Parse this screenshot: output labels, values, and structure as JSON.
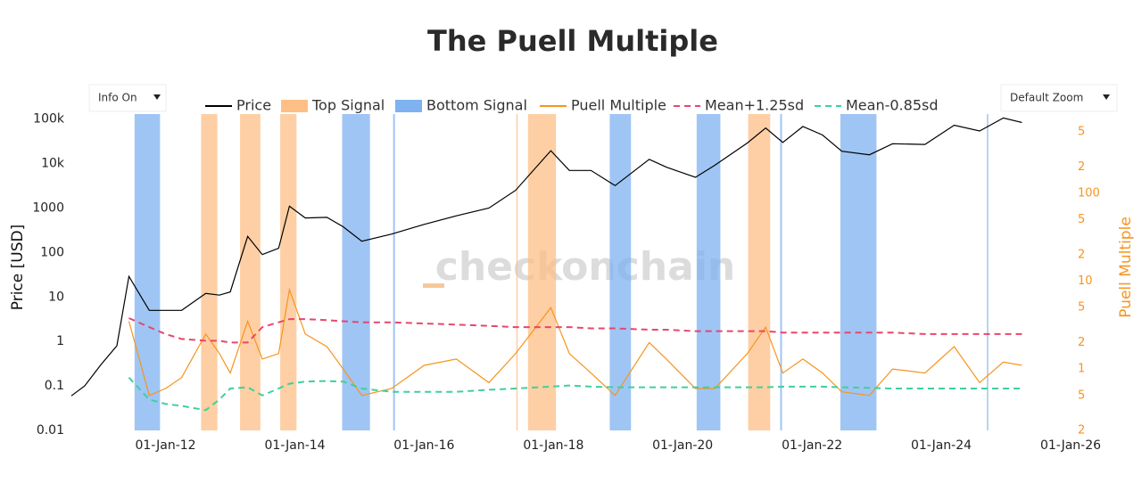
{
  "controls": {
    "info": "Info On",
    "zoom": "Default Zoom"
  },
  "chart_data": {
    "type": "line",
    "title": "The Puell Multiple",
    "watermark": "checkonchain",
    "ylabel": "Price [USD]",
    "y2label": "Puell Multiple",
    "log_scale": true,
    "y2_log_scale": true,
    "xlim": [
      "2010-07-18",
      "2026-01-01"
    ],
    "xticks": [
      {
        "value": "2012-01-01",
        "label": "01-Jan-12"
      },
      {
        "value": "2014-01-01",
        "label": "01-Jan-14"
      },
      {
        "value": "2016-01-01",
        "label": "01-Jan-16"
      },
      {
        "value": "2018-01-01",
        "label": "01-Jan-18"
      },
      {
        "value": "2020-01-01",
        "label": "01-Jan-20"
      },
      {
        "value": "2022-01-01",
        "label": "01-Jan-22"
      },
      {
        "value": "2024-01-01",
        "label": "01-Jan-24"
      },
      {
        "value": "2026-01-01",
        "label": "01-Jan-26"
      }
    ],
    "ylim": [
      0.01,
      130000
    ],
    "yticks": [
      0.01,
      0.1,
      1,
      10,
      100,
      1000,
      {
        "value": 10000,
        "label": "10k"
      },
      {
        "value": 100000,
        "label": "100k"
      }
    ],
    "y2lim": [
      0.2,
      800
    ],
    "y2ticks": [
      {
        "value": 0.2,
        "label": "2"
      },
      {
        "value": 0.5,
        "label": "5"
      },
      1,
      {
        "value": 2,
        "label": "2"
      },
      {
        "value": 5,
        "label": "5"
      },
      10,
      {
        "value": 20,
        "label": "2"
      },
      {
        "value": 50,
        "label": "5"
      },
      100,
      {
        "value": 200,
        "label": "2"
      },
      {
        "value": 500,
        "label": "5"
      }
    ],
    "x": [
      "2010-07-18",
      "2010-10-01",
      "2011-01-01",
      "2011-04-01",
      "2011-06-08",
      "2011-10-01",
      "2012-01-01",
      "2012-04-01",
      "2012-08-15",
      "2012-11-01",
      "2013-01-01",
      "2013-04-09",
      "2013-07-01",
      "2013-10-01",
      "2013-12-01",
      "2014-03-01",
      "2014-07-01",
      "2014-10-01",
      "2015-01-14",
      "2015-07-01",
      "2016-01-01",
      "2016-07-01",
      "2017-01-01",
      "2017-06-01",
      "2017-12-17",
      "2018-04-01",
      "2018-08-01",
      "2018-12-15",
      "2019-06-26",
      "2019-10-01",
      "2020-03-13",
      "2020-07-01",
      "2020-12-31",
      "2021-04-14",
      "2021-07-20",
      "2021-11-10",
      "2022-03-01",
      "2022-06-18",
      "2022-11-21",
      "2023-04-01",
      "2023-10-01",
      "2024-03-14",
      "2024-08-05",
      "2024-12-17",
      "2025-04-01"
    ],
    "series": [
      {
        "name": "Price",
        "color": "#000000",
        "values": [
          0.06,
          0.1,
          0.3,
          0.8,
          29,
          5,
          5,
          5,
          12,
          11,
          13,
          230,
          90,
          125,
          1100,
          600,
          620,
          380,
          180,
          260,
          430,
          670,
          1000,
          2500,
          19500,
          7000,
          7000,
          3200,
          12500,
          8300,
          4900,
          9200,
          29000,
          63000,
          30000,
          68000,
          44000,
          19000,
          15800,
          28000,
          27000,
          73000,
          54000,
          106000,
          84000
        ]
      },
      {
        "name": "Top Signal",
        "kind": "band",
        "color": "#fdbf85",
        "ranges": [
          [
            "2012-07-20",
            "2012-10-20"
          ],
          [
            "2013-02-25",
            "2013-06-20"
          ],
          [
            "2013-10-10",
            "2014-01-10"
          ],
          [
            "2017-06-05",
            "2017-06-12"
          ],
          [
            "2017-08-10",
            "2018-01-15"
          ],
          [
            "2021-01-05",
            "2021-05-10"
          ]
        ]
      },
      {
        "name": "Bottom Signal",
        "kind": "band",
        "color": "#7fb2f0",
        "ranges": [
          [
            "2011-07-10",
            "2011-12-01"
          ],
          [
            "2014-09-25",
            "2015-03-01"
          ],
          [
            "2015-07-10",
            "2015-07-20"
          ],
          [
            "2018-11-15",
            "2019-03-15"
          ],
          [
            "2020-03-20",
            "2020-08-01"
          ],
          [
            "2021-07-05",
            "2021-07-15"
          ],
          [
            "2022-06-10",
            "2022-12-31"
          ],
          [
            "2024-09-15",
            "2024-09-22"
          ]
        ]
      },
      {
        "name": "Puell Multiple",
        "color": "#f7941d",
        "axis": "y2",
        "values": [
          null,
          null,
          null,
          null,
          3.5,
          0.5,
          0.6,
          0.8,
          2.5,
          1.5,
          0.9,
          3.5,
          1.3,
          1.5,
          8,
          2.5,
          1.8,
          1.0,
          0.5,
          0.6,
          1.1,
          1.3,
          0.7,
          1.5,
          5,
          1.5,
          0.9,
          0.5,
          2.0,
          1.3,
          0.6,
          0.6,
          1.5,
          3.0,
          0.9,
          1.3,
          0.9,
          0.55,
          0.5,
          1.0,
          0.9,
          1.8,
          0.7,
          1.2,
          1.1
        ]
      },
      {
        "name": "Mean+1.25sd",
        "color": "#e8466e",
        "axis": "y2",
        "dash": true,
        "values": [
          null,
          null,
          null,
          null,
          3.8,
          3.0,
          2.5,
          2.2,
          2.1,
          2.1,
          2.0,
          2.0,
          3.0,
          3.4,
          3.7,
          3.7,
          3.6,
          3.5,
          3.4,
          3.4,
          3.3,
          3.2,
          3.1,
          3.0,
          3.0,
          3.0,
          2.9,
          2.9,
          2.8,
          2.8,
          2.7,
          2.7,
          2.7,
          2.7,
          2.6,
          2.6,
          2.6,
          2.6,
          2.6,
          2.6,
          2.5,
          2.5,
          2.5,
          2.5,
          2.5
        ]
      },
      {
        "name": "Mean-0.85sd",
        "color": "#3fd09b",
        "axis": "y2",
        "dash": true,
        "values": [
          null,
          null,
          null,
          null,
          0.8,
          0.45,
          0.4,
          0.38,
          0.34,
          0.45,
          0.6,
          0.62,
          0.5,
          0.6,
          0.68,
          0.72,
          0.73,
          0.72,
          0.6,
          0.55,
          0.55,
          0.55,
          0.58,
          0.6,
          0.63,
          0.65,
          0.63,
          0.62,
          0.62,
          0.62,
          0.62,
          0.62,
          0.62,
          0.62,
          0.63,
          0.63,
          0.63,
          0.62,
          0.61,
          0.6,
          0.6,
          0.6,
          0.6,
          0.6,
          0.6
        ]
      }
    ]
  }
}
